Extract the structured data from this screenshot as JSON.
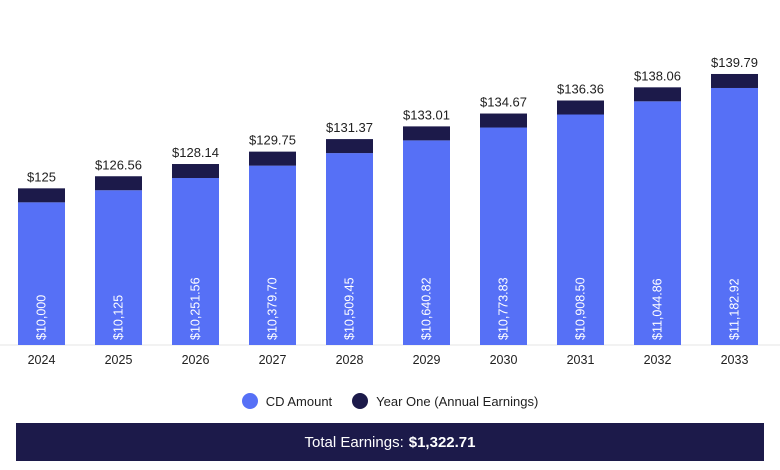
{
  "colors": {
    "cd_amount": "#5670f6",
    "annual_earnings": "#1c1a4a",
    "total_bar_bg": "#1c1a4a"
  },
  "chart_data": {
    "type": "bar",
    "stacked": true,
    "categories": [
      "2024",
      "2025",
      "2026",
      "2027",
      "2028",
      "2029",
      "2030",
      "2031",
      "2032",
      "2033"
    ],
    "series": [
      {
        "name": "CD Amount",
        "values": [
          10000,
          10125,
          10251.56,
          10379.7,
          10509.45,
          10640.82,
          10773.83,
          10908.5,
          11044.86,
          11182.92
        ],
        "labels": [
          "$10,000",
          "$10,125",
          "$10,251.56",
          "$10,379.70",
          "$10,509.45",
          "$10,640.82",
          "$10,773.83",
          "$10,908.50",
          "$11,044.86",
          "$11,182.92"
        ]
      },
      {
        "name": "Year One (Annual Earnings)",
        "values": [
          125,
          126.56,
          128.14,
          129.75,
          131.37,
          133.01,
          134.67,
          136.36,
          138.06,
          139.79
        ],
        "labels": [
          "$125",
          "$126.56",
          "$128.14",
          "$129.75",
          "$131.37",
          "$133.01",
          "$134.67",
          "$136.36",
          "$138.06",
          "$139.79"
        ]
      }
    ],
    "legend_position": "bottom-center",
    "grid": false
  },
  "legend": {
    "cd_amount": "CD Amount",
    "annual_earnings": "Year One (Annual Earnings)"
  },
  "total": {
    "label": "Total Earnings:",
    "value": "$1,322.71"
  }
}
